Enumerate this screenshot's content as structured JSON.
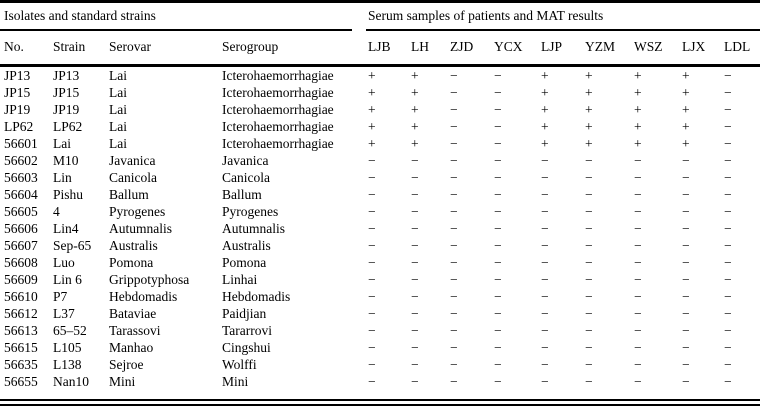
{
  "page": {
    "background_color": "#ffffff",
    "text_color": "#000000"
  },
  "table": {
    "group_headers": [
      {
        "label": "Isolates and standard strains",
        "colspan": 4
      },
      {
        "label": "Serum samples of patients and MAT results",
        "colspan": 9
      }
    ],
    "columns": [
      "No.",
      "Strain",
      "Serovar",
      "Serogroup",
      "LJB",
      "LH",
      "ZJD",
      "YCX",
      "LJP",
      "YZM",
      "WSZ",
      "LJX",
      "LDL"
    ],
    "isolate_column_count": 4,
    "serum_column_count": 9,
    "positive_symbol": "+",
    "negative_symbol": "−",
    "rows": [
      {
        "no": "JP13",
        "strain": "JP13",
        "serovar": "Lai",
        "serogroup": "Icterohaemorrhagiae",
        "mat": [
          "+",
          "+",
          "−",
          "−",
          "+",
          "+",
          "+",
          "+",
          "−"
        ]
      },
      {
        "no": "JP15",
        "strain": "JP15",
        "serovar": "Lai",
        "serogroup": "Icterohaemorrhagiae",
        "mat": [
          "+",
          "+",
          "−",
          "−",
          "+",
          "+",
          "+",
          "+",
          "−"
        ]
      },
      {
        "no": "JP19",
        "strain": "JP19",
        "serovar": "Lai",
        "serogroup": "Icterohaemorrhagiae",
        "mat": [
          "+",
          "+",
          "−",
          "−",
          "+",
          "+",
          "+",
          "+",
          "−"
        ]
      },
      {
        "no": "LP62",
        "strain": "LP62",
        "serovar": "Lai",
        "serogroup": "Icterohaemorrhagiae",
        "mat": [
          "+",
          "+",
          "−",
          "−",
          "+",
          "+",
          "+",
          "+",
          "−"
        ]
      },
      {
        "no": "56601",
        "strain": "Lai",
        "serovar": "Lai",
        "serogroup": "Icterohaemorrhagiae",
        "mat": [
          "+",
          "+",
          "−",
          "−",
          "+",
          "+",
          "+",
          "+",
          "−"
        ]
      },
      {
        "no": "56602",
        "strain": "M10",
        "serovar": "Javanica",
        "serogroup": "Javanica",
        "mat": [
          "−",
          "−",
          "−",
          "−",
          "−",
          "−",
          "−",
          "−",
          "−"
        ]
      },
      {
        "no": "56603",
        "strain": "Lin",
        "serovar": "Canicola",
        "serogroup": "Canicola",
        "mat": [
          "−",
          "−",
          "−",
          "−",
          "−",
          "−",
          "−",
          "−",
          "−"
        ]
      },
      {
        "no": "56604",
        "strain": "Pishu",
        "serovar": "Ballum",
        "serogroup": "Ballum",
        "mat": [
          "−",
          "−",
          "−",
          "−",
          "−",
          "−",
          "−",
          "−",
          "−"
        ]
      },
      {
        "no": "56605",
        "strain": "4",
        "serovar": "Pyrogenes",
        "serogroup": "Pyrogenes",
        "mat": [
          "−",
          "−",
          "−",
          "−",
          "−",
          "−",
          "−",
          "−",
          "−"
        ]
      },
      {
        "no": "56606",
        "strain": "Lin4",
        "serovar": "Autumnalis",
        "serogroup": "Autumnalis",
        "mat": [
          "−",
          "−",
          "−",
          "−",
          "−",
          "−",
          "−",
          "−",
          "−"
        ]
      },
      {
        "no": "56607",
        "strain": "Sep-65",
        "serovar": "Australis",
        "serogroup": "Australis",
        "mat": [
          "−",
          "−",
          "−",
          "−",
          "−",
          "−",
          "−",
          "−",
          "−"
        ]
      },
      {
        "no": "56608",
        "strain": "Luo",
        "serovar": "Pomona",
        "serogroup": "Pomona",
        "mat": [
          "−",
          "−",
          "−",
          "−",
          "−",
          "−",
          "−",
          "−",
          "−"
        ]
      },
      {
        "no": "56609",
        "strain": "Lin 6",
        "serovar": "Grippotyphosa",
        "serogroup": "Linhai",
        "mat": [
          "−",
          "−",
          "−",
          "−",
          "−",
          "−",
          "−",
          "−",
          "−"
        ]
      },
      {
        "no": "56610",
        "strain": "P7",
        "serovar": "Hebdomadis",
        "serogroup": "Hebdomadis",
        "mat": [
          "−",
          "−",
          "−",
          "−",
          "−",
          "−",
          "−",
          "−",
          "−"
        ]
      },
      {
        "no": "56612",
        "strain": "L37",
        "serovar": "Bataviae",
        "serogroup": "Paidjian",
        "mat": [
          "−",
          "−",
          "−",
          "−",
          "−",
          "−",
          "−",
          "−",
          "−"
        ]
      },
      {
        "no": "56613",
        "strain": "65–52",
        "serovar": "Tarassovi",
        "serogroup": "Tararrovi",
        "mat": [
          "−",
          "−",
          "−",
          "−",
          "−",
          "−",
          "−",
          "−",
          "−"
        ]
      },
      {
        "no": "56615",
        "strain": "L105",
        "serovar": "Manhao",
        "serogroup": "Cingshui",
        "mat": [
          "−",
          "−",
          "−",
          "−",
          "−",
          "−",
          "−",
          "−",
          "−"
        ]
      },
      {
        "no": "56635",
        "strain": "L138",
        "serovar": "Sejroe",
        "serogroup": "Wolffi",
        "mat": [
          "−",
          "−",
          "−",
          "−",
          "−",
          "−",
          "−",
          "−",
          "−"
        ]
      },
      {
        "no": "56655",
        "strain": "Nan10",
        "serovar": "Mini",
        "serogroup": "Mini",
        "mat": [
          "−",
          "−",
          "−",
          "−",
          "−",
          "−",
          "−",
          "−",
          "−"
        ]
      }
    ]
  }
}
